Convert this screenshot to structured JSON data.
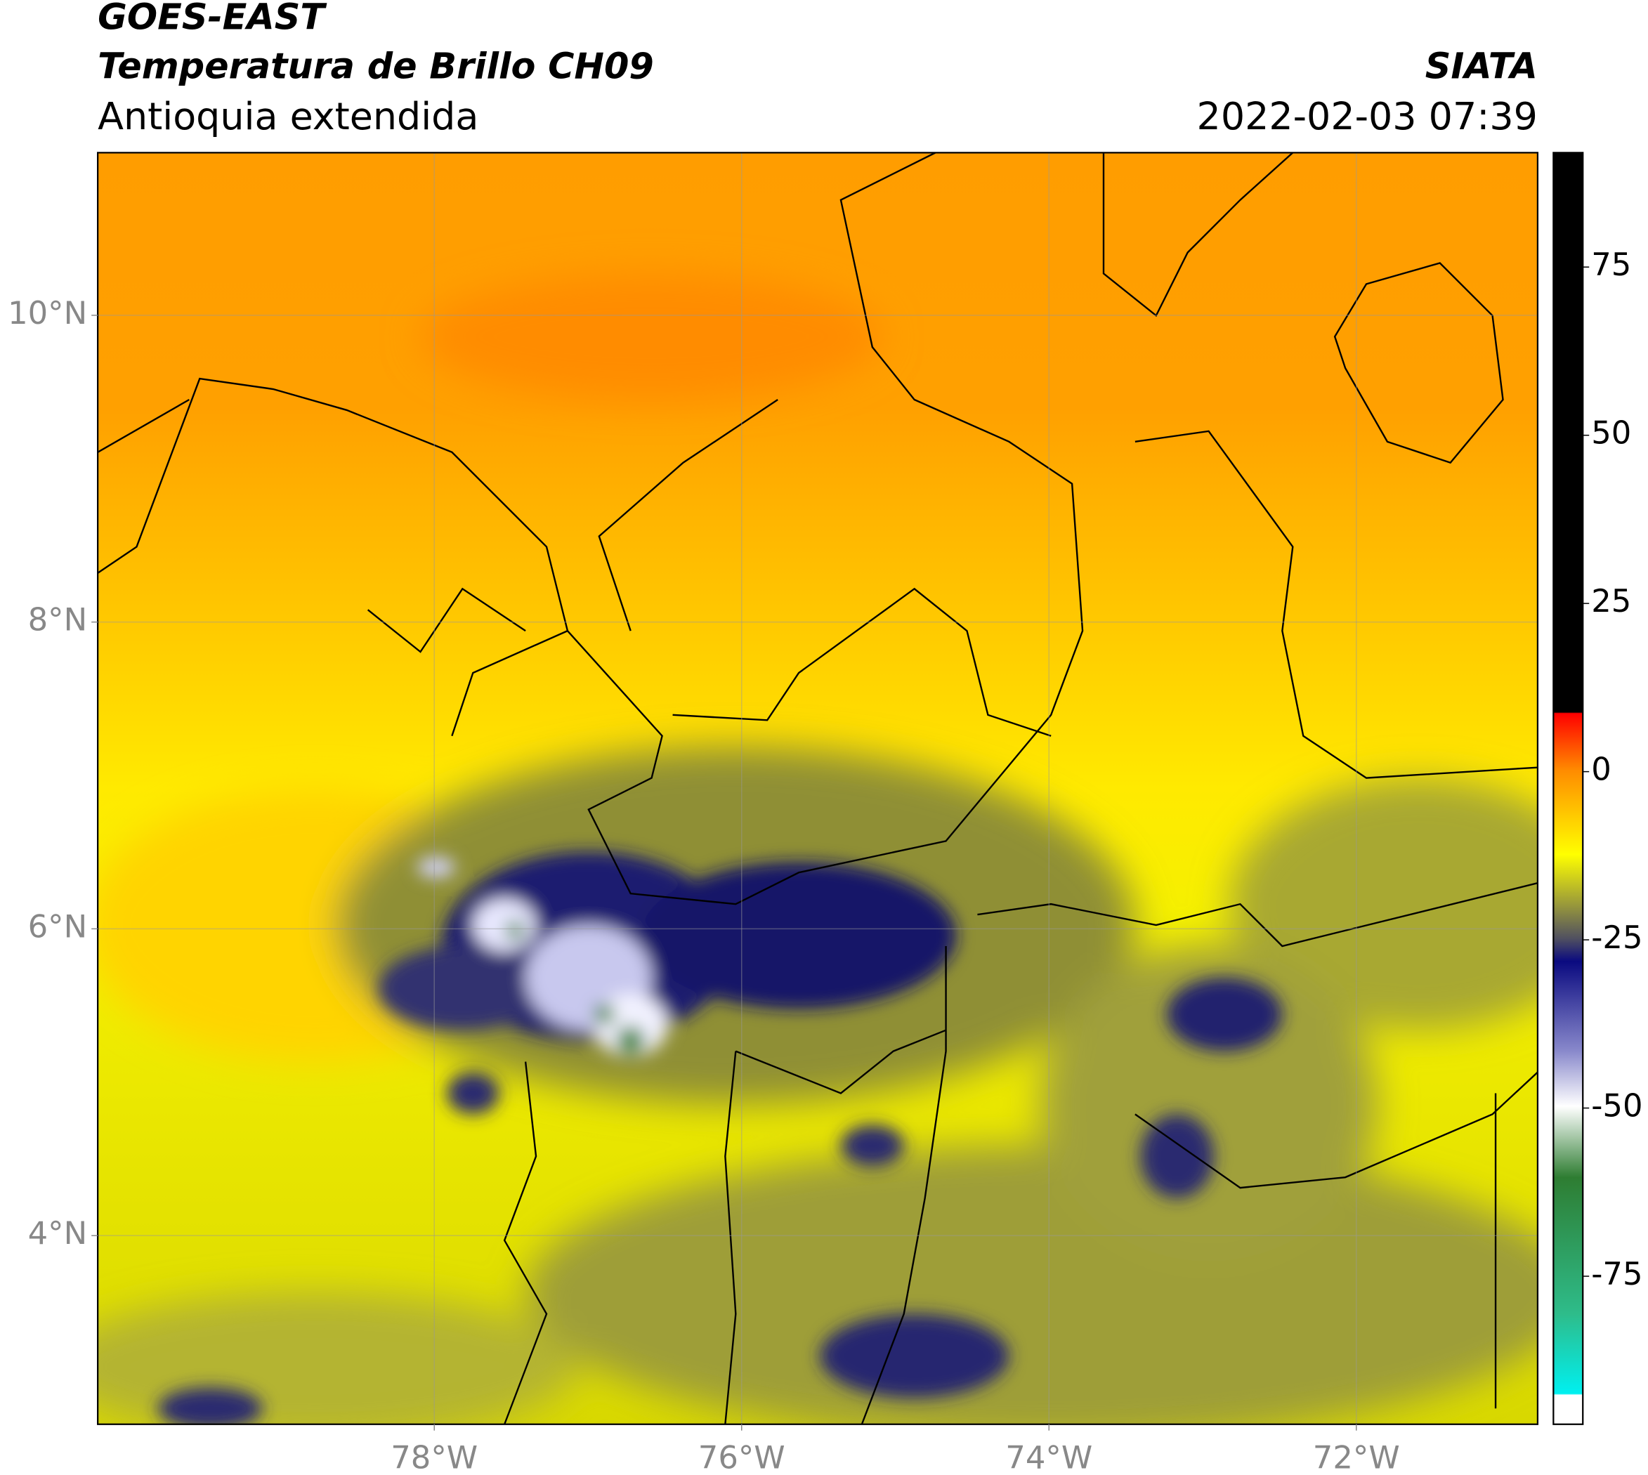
{
  "header": {
    "title": "GOES-EAST",
    "subtitle": "Temperatura de Brillo CH09",
    "region": "Antioquia extendida",
    "source": "SIATA",
    "datetime": "2022-02-03 07:39"
  },
  "map": {
    "xlim": [
      -80.19,
      -70.82
    ],
    "ylim": [
      2.77,
      11.06
    ],
    "grid": true,
    "xticks": [
      {
        "value": -78,
        "label": "78°W"
      },
      {
        "value": -76,
        "label": "76°W"
      },
      {
        "value": -74,
        "label": "74°W"
      },
      {
        "value": -72,
        "label": "72°W"
      }
    ],
    "yticks": [
      {
        "value": 4,
        "label": "4°N"
      },
      {
        "value": 6,
        "label": "6°N"
      },
      {
        "value": 8,
        "label": "8°N"
      },
      {
        "value": 10,
        "label": "10°N"
      }
    ]
  },
  "colorbar": {
    "lim": [
      -97,
      92
    ],
    "ticks": [
      -75,
      -50,
      -25,
      0,
      25,
      50,
      75
    ]
  }
}
